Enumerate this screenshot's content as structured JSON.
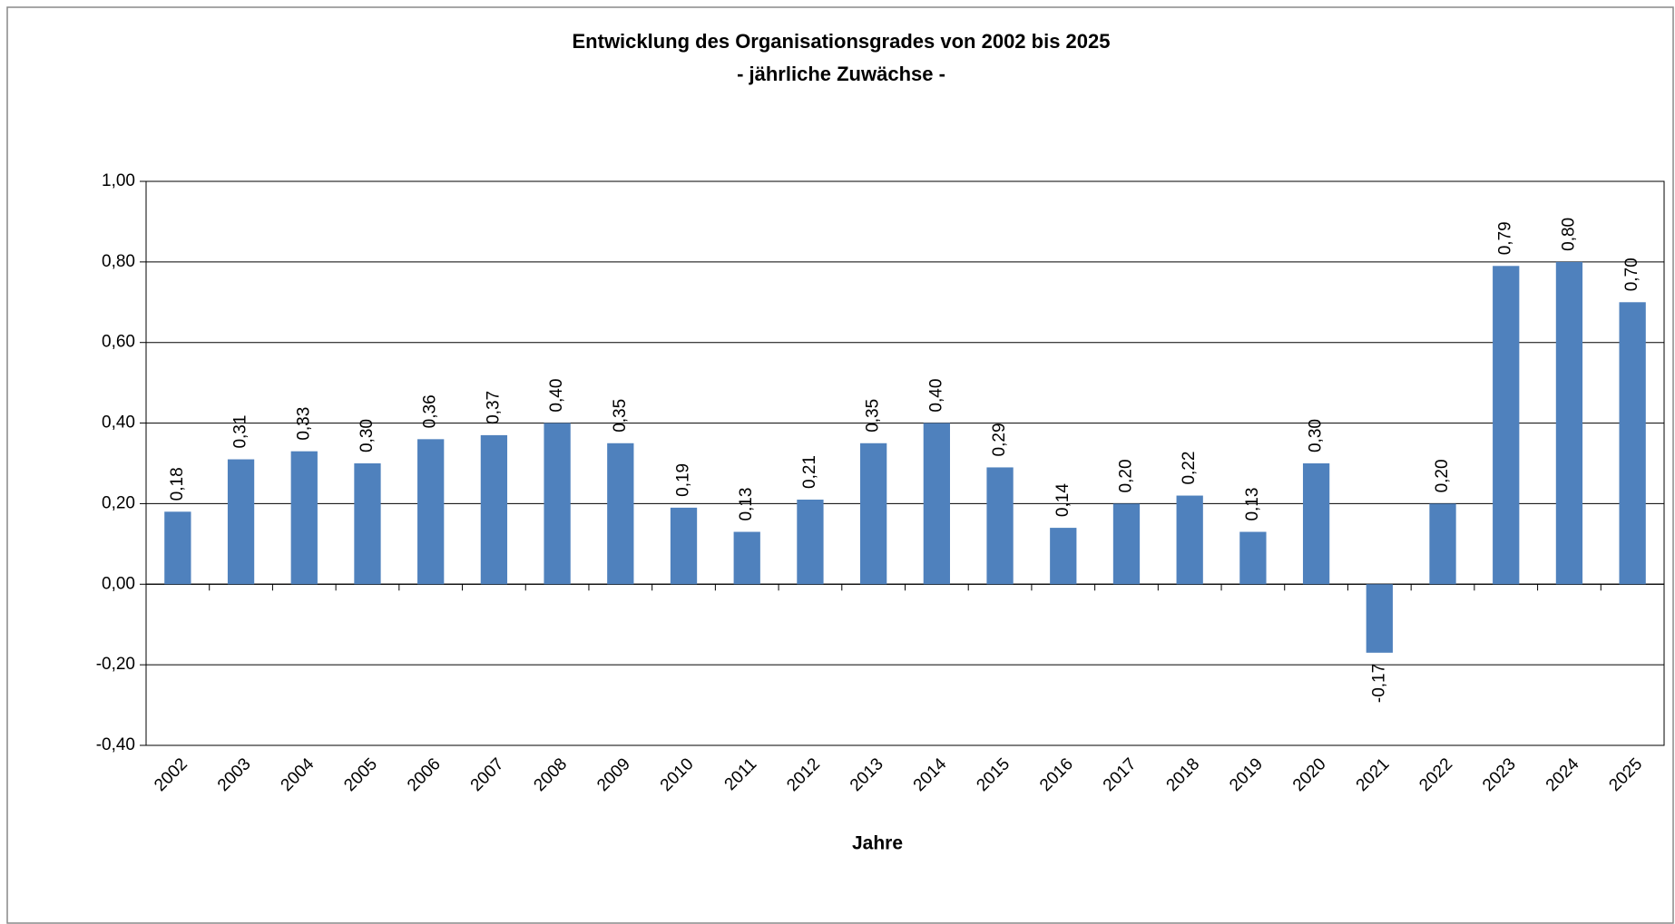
{
  "chart_data": {
    "type": "bar",
    "title": "Entwicklung des Organisationsgrades von 2002 bis 2025",
    "subtitle": "- jährliche Zuwächse -",
    "x_label": "Jahre",
    "categories": [
      "2002",
      "2003",
      "2004",
      "2005",
      "2006",
      "2007",
      "2008",
      "2009",
      "2010",
      "2011",
      "2012",
      "2013",
      "2014",
      "2015",
      "2016",
      "2017",
      "2018",
      "2019",
      "2020",
      "2021",
      "2022",
      "2023",
      "2024",
      "2025"
    ],
    "values": [
      0.18,
      0.31,
      0.33,
      0.3,
      0.36,
      0.37,
      0.4,
      0.35,
      0.19,
      0.13,
      0.21,
      0.35,
      0.4,
      0.29,
      0.14,
      0.2,
      0.22,
      0.13,
      0.3,
      -0.17,
      0.2,
      0.79,
      0.8,
      0.7
    ],
    "value_labels": [
      "0,18",
      "0,31",
      "0,33",
      "0,30",
      "0,36",
      "0,37",
      "0,40",
      "0,35",
      "0,19",
      "0,13",
      "0,21",
      "0,35",
      "0,40",
      "0,29",
      "0,14",
      "0,20",
      "0,22",
      "0,13",
      "0,30",
      "-0,17",
      "0,20",
      "0,79",
      "0,80",
      "0,70"
    ],
    "color": "#4f81bd",
    "ylim": [
      -0.4,
      1.0
    ],
    "yticks": [
      {
        "value": -0.4,
        "label": "-0,40"
      },
      {
        "value": -0.2,
        "label": "-0,20"
      },
      {
        "value": 0,
        "label": "0,00"
      },
      {
        "value": 0.2,
        "label": "0,20"
      },
      {
        "value": 0.4,
        "label": "0,40"
      },
      {
        "value": 0.6,
        "label": "0,60"
      },
      {
        "value": 0.8,
        "label": "0,80"
      },
      {
        "value": 1.0,
        "label": "1,00"
      }
    ],
    "grid": true
  }
}
